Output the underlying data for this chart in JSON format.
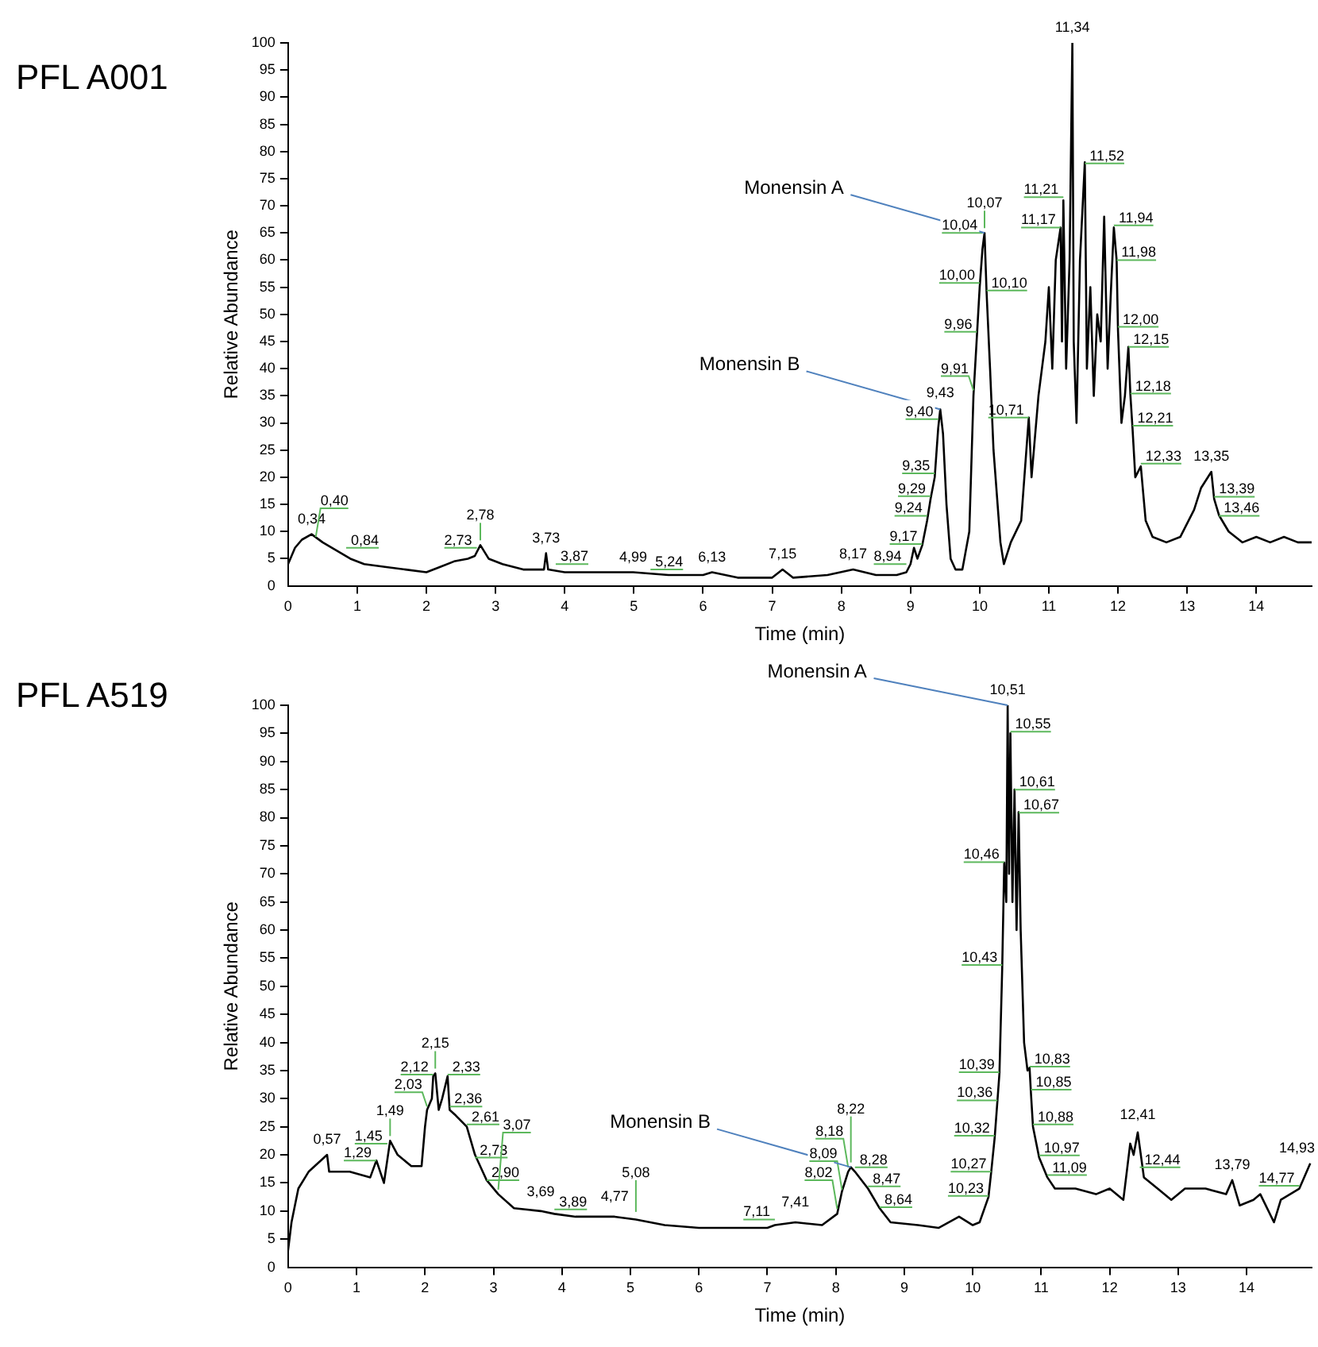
{
  "chart_data": [
    {
      "type": "line",
      "title": "PFL A001",
      "xlabel": "Time (min)",
      "ylabel": "Relative Abundance",
      "grid": false,
      "marker": "none",
      "x": [
        0,
        0.1,
        0.2,
        0.34,
        0.5,
        0.7,
        0.9,
        1.1,
        1.4,
        1.7,
        2.0,
        2.2,
        2.4,
        2.6,
        2.7,
        2.78,
        2.9,
        3.1,
        3.4,
        3.7,
        3.73,
        3.76,
        4.0,
        4.5,
        4.99,
        5.5,
        6.0,
        6.13,
        6.5,
        7.0,
        7.15,
        7.3,
        7.8,
        8.17,
        8.5,
        8.8,
        8.94,
        9.0,
        9.05,
        9.1,
        9.17,
        9.24,
        9.29,
        9.35,
        9.4,
        9.43,
        9.47,
        9.52,
        9.58,
        9.65,
        9.75,
        9.85,
        9.91,
        9.96,
        10.0,
        10.04,
        10.07,
        10.1,
        10.15,
        10.2,
        10.3,
        10.35,
        10.45,
        10.6,
        10.71,
        10.75,
        10.85,
        10.95,
        11.0,
        11.05,
        11.1,
        11.17,
        11.19,
        11.21,
        11.25,
        11.3,
        11.34,
        11.36,
        11.4,
        11.45,
        11.52,
        11.55,
        11.6,
        11.65,
        11.7,
        11.75,
        11.8,
        11.85,
        11.9,
        11.94,
        11.98,
        12.0,
        12.05,
        12.1,
        12.15,
        12.18,
        12.21,
        12.25,
        12.33,
        12.4,
        12.5,
        12.7,
        12.9,
        13.1,
        13.2,
        13.35,
        13.39,
        13.46,
        13.6,
        13.8,
        14.0,
        14.2,
        14.4,
        14.6,
        14.8
      ],
      "series": [
        {
          "color": "#000000",
          "values": [
            4,
            7,
            8.5,
            9.5,
            8,
            6.5,
            5,
            4,
            3.5,
            3,
            2.5,
            3.5,
            4.5,
            5,
            5.5,
            7.5,
            5,
            4,
            3,
            3,
            6,
            3,
            2.5,
            2.5,
            2.5,
            2,
            2,
            2.5,
            1.5,
            1.5,
            3,
            1.5,
            2,
            3,
            2,
            2,
            2.5,
            4,
            7,
            5,
            7.5,
            12,
            16,
            20,
            29,
            32.5,
            28,
            15,
            5,
            3,
            3,
            10,
            35,
            46,
            55,
            62,
            65,
            54,
            40,
            25,
            8,
            4,
            8,
            12,
            31,
            20,
            35,
            45,
            55,
            40,
            60,
            66,
            45,
            71,
            40,
            60,
            100,
            45,
            30,
            60,
            78,
            40,
            55,
            35,
            50,
            45,
            68,
            40,
            55,
            66,
            60,
            47,
            30,
            35,
            44,
            35,
            29,
            20,
            22,
            12,
            9,
            8,
            9,
            14,
            18,
            21,
            16,
            13,
            10,
            8,
            9,
            8,
            9,
            8,
            8
          ]
        }
      ],
      "xlim": [
        0,
        14.8
      ],
      "xticks": [
        0,
        1,
        2,
        3,
        4,
        5,
        6,
        7,
        8,
        9,
        10,
        11,
        12,
        13,
        14
      ],
      "ylim": [
        0,
        100
      ],
      "yticks": [
        0,
        5,
        10,
        15,
        20,
        25,
        30,
        35,
        40,
        45,
        50,
        55,
        60,
        65,
        70,
        75,
        80,
        85,
        90,
        95,
        100
      ],
      "annotations": [
        {
          "text": "0,34",
          "x": 0.34,
          "y": 9.5
        },
        {
          "text": "0,40",
          "x": 0.4,
          "y": 9
        },
        {
          "text": "0,84",
          "x": 0.84,
          "y": 7
        },
        {
          "text": "2,73",
          "x": 2.73,
          "y": 7
        },
        {
          "text": "2,78",
          "x": 2.78,
          "y": 7.5
        },
        {
          "text": "3,73",
          "x": 3.73,
          "y": 6
        },
        {
          "text": "3,87",
          "x": 3.87,
          "y": 4
        },
        {
          "text": "4,99",
          "x": 4.99,
          "y": 2.5
        },
        {
          "text": "5,24",
          "x": 5.24,
          "y": 3
        },
        {
          "text": "6,13",
          "x": 6.13,
          "y": 2.5
        },
        {
          "text": "7,15",
          "x": 7.15,
          "y": 3
        },
        {
          "text": "8,17",
          "x": 8.17,
          "y": 3
        },
        {
          "text": "8,94",
          "x": 8.94,
          "y": 4
        },
        {
          "text": "9,17",
          "x": 9.17,
          "y": 7.7
        },
        {
          "text": "9,24",
          "x": 9.24,
          "y": 12.9
        },
        {
          "text": "9,29",
          "x": 9.29,
          "y": 16.5
        },
        {
          "text": "9,35",
          "x": 9.35,
          "y": 20.7
        },
        {
          "text": "9,40",
          "x": 9.4,
          "y": 30.7
        },
        {
          "text": "9,43",
          "x": 9.43,
          "y": 32.7
        },
        {
          "text": "9,91",
          "x": 9.91,
          "y": 36
        },
        {
          "text": "9,96",
          "x": 9.96,
          "y": 46.8
        },
        {
          "text": "10,00",
          "x": 10.0,
          "y": 55.8
        },
        {
          "text": "10,04",
          "x": 10.04,
          "y": 65
        },
        {
          "text": "10,07",
          "x": 10.07,
          "y": 65
        },
        {
          "text": "10,10",
          "x": 10.1,
          "y": 54.4
        },
        {
          "text": "10,71",
          "x": 10.71,
          "y": 31
        },
        {
          "text": "11,17",
          "x": 11.17,
          "y": 66
        },
        {
          "text": "11,21",
          "x": 11.21,
          "y": 71.6
        },
        {
          "text": "11,34",
          "x": 11.34,
          "y": 100
        },
        {
          "text": "11,52",
          "x": 11.52,
          "y": 77.8
        },
        {
          "text": "11,94",
          "x": 11.94,
          "y": 66.4
        },
        {
          "text": "11,98",
          "x": 11.98,
          "y": 60
        },
        {
          "text": "12,00",
          "x": 12.0,
          "y": 47.7
        },
        {
          "text": "12,15",
          "x": 12.15,
          "y": 44
        },
        {
          "text": "12,18",
          "x": 12.18,
          "y": 35.4
        },
        {
          "text": "12,21",
          "x": 12.21,
          "y": 29.5
        },
        {
          "text": "12,33",
          "x": 12.33,
          "y": 22.5
        },
        {
          "text": "13,35",
          "x": 13.35,
          "y": 21
        },
        {
          "text": "13,39",
          "x": 13.39,
          "y": 16.4
        },
        {
          "text": "13,46",
          "x": 13.46,
          "y": 12.9
        },
        {
          "text": "Monensin A",
          "x": 10.07,
          "y": 65
        },
        {
          "text": "Monensin B",
          "x": 9.43,
          "y": 32.5
        }
      ]
    },
    {
      "type": "line",
      "title": "PFL A519",
      "xlabel": "Time (min)",
      "ylabel": "Relative Abundance",
      "grid": false,
      "marker": "none",
      "x": [
        0,
        0.05,
        0.15,
        0.3,
        0.57,
        0.6,
        0.9,
        1.2,
        1.29,
        1.4,
        1.49,
        1.6,
        1.8,
        1.95,
        2.0,
        2.03,
        2.1,
        2.12,
        2.15,
        2.2,
        2.25,
        2.33,
        2.36,
        2.45,
        2.61,
        2.73,
        2.9,
        3.07,
        3.3,
        3.69,
        3.89,
        4.2,
        4.77,
        5.08,
        5.5,
        6.0,
        6.5,
        7.0,
        7.11,
        7.41,
        7.8,
        8.02,
        8.09,
        8.18,
        8.22,
        8.28,
        8.47,
        8.64,
        8.8,
        9.2,
        9.5,
        9.8,
        10.0,
        10.1,
        10.23,
        10.27,
        10.32,
        10.36,
        10.39,
        10.43,
        10.46,
        10.49,
        10.51,
        10.53,
        10.55,
        10.58,
        10.61,
        10.64,
        10.67,
        10.7,
        10.75,
        10.8,
        10.83,
        10.85,
        10.88,
        10.97,
        11.09,
        11.2,
        11.5,
        11.8,
        12.0,
        12.2,
        12.3,
        12.35,
        12.41,
        12.5,
        12.7,
        12.9,
        13.1,
        13.4,
        13.7,
        13.79,
        13.9,
        14.1,
        14.2,
        14.4,
        14.5,
        14.77,
        14.93
      ],
      "series": [
        {
          "color": "#000000",
          "values": [
            3,
            8,
            14,
            17,
            20,
            17,
            17,
            16,
            19,
            15,
            22.5,
            20,
            18,
            18,
            25,
            28,
            30,
            34,
            34.5,
            28,
            30,
            34,
            28,
            27,
            25,
            20,
            15.5,
            13,
            10.5,
            10,
            9.5,
            9,
            9,
            8.5,
            7.5,
            7,
            7,
            7,
            7.5,
            8,
            7.5,
            9.5,
            13.5,
            17,
            17.8,
            17,
            14,
            10.5,
            8,
            7.5,
            7,
            9,
            7.5,
            8,
            12.5,
            17,
            23,
            29.5,
            34.5,
            53,
            72,
            65,
            100,
            70,
            95,
            65,
            85,
            60,
            81,
            60,
            40,
            35,
            35.5,
            31,
            25,
            19.5,
            16,
            14,
            14,
            13,
            14,
            12,
            22,
            20,
            24,
            16,
            14,
            12,
            14,
            14,
            13,
            15.5,
            11,
            12,
            13,
            8,
            12,
            14,
            18.5
          ]
        }
      ],
      "xlim": [
        0,
        14.95
      ],
      "xticks": [
        0,
        1,
        2,
        3,
        4,
        5,
        6,
        7,
        8,
        9,
        10,
        11,
        12,
        13,
        14
      ],
      "ylim": [
        0,
        100
      ],
      "yticks": [
        0,
        5,
        10,
        15,
        20,
        25,
        30,
        35,
        40,
        45,
        50,
        55,
        60,
        65,
        70,
        75,
        80,
        85,
        90,
        95,
        100
      ],
      "annotations": [
        {
          "text": "0,57",
          "x": 0.57,
          "y": 20
        },
        {
          "text": "1,29",
          "x": 1.29,
          "y": 19
        },
        {
          "text": "1,45",
          "x": 1.45,
          "y": 22
        },
        {
          "text": "1,49",
          "x": 1.49,
          "y": 22.5
        },
        {
          "text": "2,03",
          "x": 2.03,
          "y": 28.6
        },
        {
          "text": "2,12",
          "x": 2.12,
          "y": 34.3
        },
        {
          "text": "2,15",
          "x": 2.15,
          "y": 34.5
        },
        {
          "text": "2,33",
          "x": 2.33,
          "y": 34.3
        },
        {
          "text": "2,36",
          "x": 2.36,
          "y": 28.6
        },
        {
          "text": "2,61",
          "x": 2.61,
          "y": 25.4
        },
        {
          "text": "2,73",
          "x": 2.73,
          "y": 19.5
        },
        {
          "text": "2,90",
          "x": 2.9,
          "y": 15.5
        },
        {
          "text": "3,07",
          "x": 3.07,
          "y": 13.8
        },
        {
          "text": "3,69",
          "x": 3.69,
          "y": 10.7
        },
        {
          "text": "3,89",
          "x": 3.89,
          "y": 10.3
        },
        {
          "text": "4,77",
          "x": 4.77,
          "y": 9.9
        },
        {
          "text": "5,08",
          "x": 5.08,
          "y": 9
        },
        {
          "text": "7,11",
          "x": 7.11,
          "y": 8.5
        },
        {
          "text": "7,41",
          "x": 7.41,
          "y": 8.8
        },
        {
          "text": "8,02",
          "x": 8.02,
          "y": 10.4
        },
        {
          "text": "8,09",
          "x": 8.09,
          "y": 13.8
        },
        {
          "text": "8,18",
          "x": 8.18,
          "y": 17.8
        },
        {
          "text": "8,22",
          "x": 8.22,
          "y": 17.8
        },
        {
          "text": "8,28",
          "x": 8.28,
          "y": 17.8
        },
        {
          "text": "8,47",
          "x": 8.47,
          "y": 14.4
        },
        {
          "text": "8,64",
          "x": 8.64,
          "y": 10.7
        },
        {
          "text": "10,23",
          "x": 10.23,
          "y": 12.7
        },
        {
          "text": "10,27",
          "x": 10.27,
          "y": 17
        },
        {
          "text": "10,32",
          "x": 10.32,
          "y": 23.4
        },
        {
          "text": "10,36",
          "x": 10.36,
          "y": 29.7
        },
        {
          "text": "10,39",
          "x": 10.39,
          "y": 34.7
        },
        {
          "text": "10,43",
          "x": 10.43,
          "y": 53.8
        },
        {
          "text": "10,46",
          "x": 10.46,
          "y": 72.1
        },
        {
          "text": "10,51",
          "x": 10.51,
          "y": 100
        },
        {
          "text": "10,55",
          "x": 10.55,
          "y": 95.3
        },
        {
          "text": "10,61",
          "x": 10.61,
          "y": 85
        },
        {
          "text": "10,67",
          "x": 10.67,
          "y": 80.9
        },
        {
          "text": "10,83",
          "x": 10.83,
          "y": 35.7
        },
        {
          "text": "10,85",
          "x": 10.85,
          "y": 31.6
        },
        {
          "text": "10,88",
          "x": 10.88,
          "y": 25.4
        },
        {
          "text": "10,97",
          "x": 10.97,
          "y": 19.9
        },
        {
          "text": "11,09",
          "x": 11.09,
          "y": 16.4
        },
        {
          "text": "12,41",
          "x": 12.41,
          "y": 24.4
        },
        {
          "text": "12,44",
          "x": 12.44,
          "y": 17.8
        },
        {
          "text": "13,79",
          "x": 13.79,
          "y": 15.5
        },
        {
          "text": "14,77",
          "x": 14.77,
          "y": 14.5
        },
        {
          "text": "14,93",
          "x": 14.93,
          "y": 18.5
        },
        {
          "text": "Monensin A",
          "x": 10.51,
          "y": 100
        },
        {
          "text": "Monensin B",
          "x": 8.22,
          "y": 17.8
        }
      ]
    }
  ]
}
